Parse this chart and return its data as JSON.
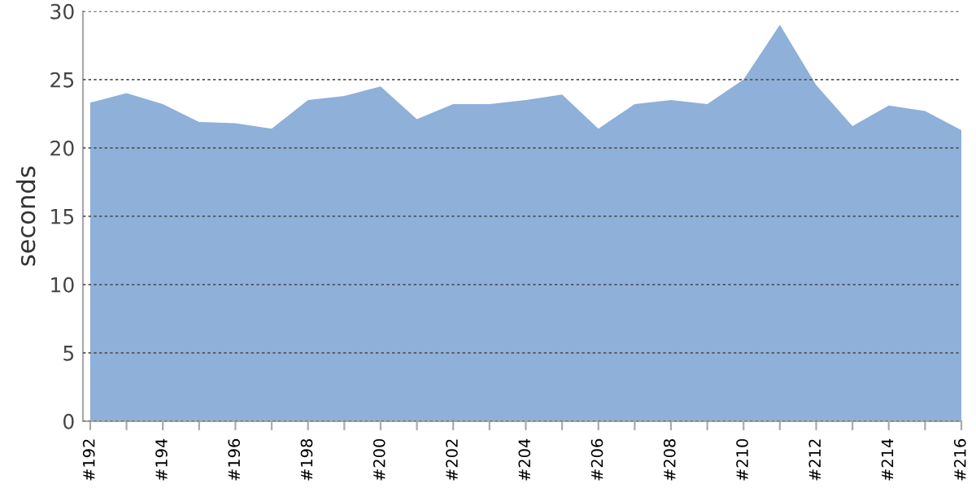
{
  "chart_data": {
    "type": "area",
    "ylabel": "seconds",
    "categories": [
      "#192",
      null,
      "#194",
      null,
      "#196",
      null,
      "#198",
      null,
      "#200",
      null,
      "#202",
      null,
      "#204",
      null,
      "#206",
      null,
      "#208",
      null,
      "#210",
      null,
      "#212",
      null,
      "#214",
      null,
      "#216"
    ],
    "series": [
      {
        "color": "#8eb0d9",
        "values": [
          23.3,
          24.0,
          23.2,
          21.9,
          21.8,
          21.4,
          23.5,
          23.8,
          24.5,
          22.1,
          23.2,
          23.2,
          23.5,
          23.9,
          21.4,
          23.2,
          23.5,
          23.2,
          25.0,
          29.0,
          24.6,
          21.6,
          23.1,
          22.7,
          21.3
        ]
      }
    ],
    "ylim": [
      0,
      30
    ],
    "yticks": [
      0,
      5,
      10,
      15,
      20,
      25,
      30
    ],
    "grid": "y"
  }
}
